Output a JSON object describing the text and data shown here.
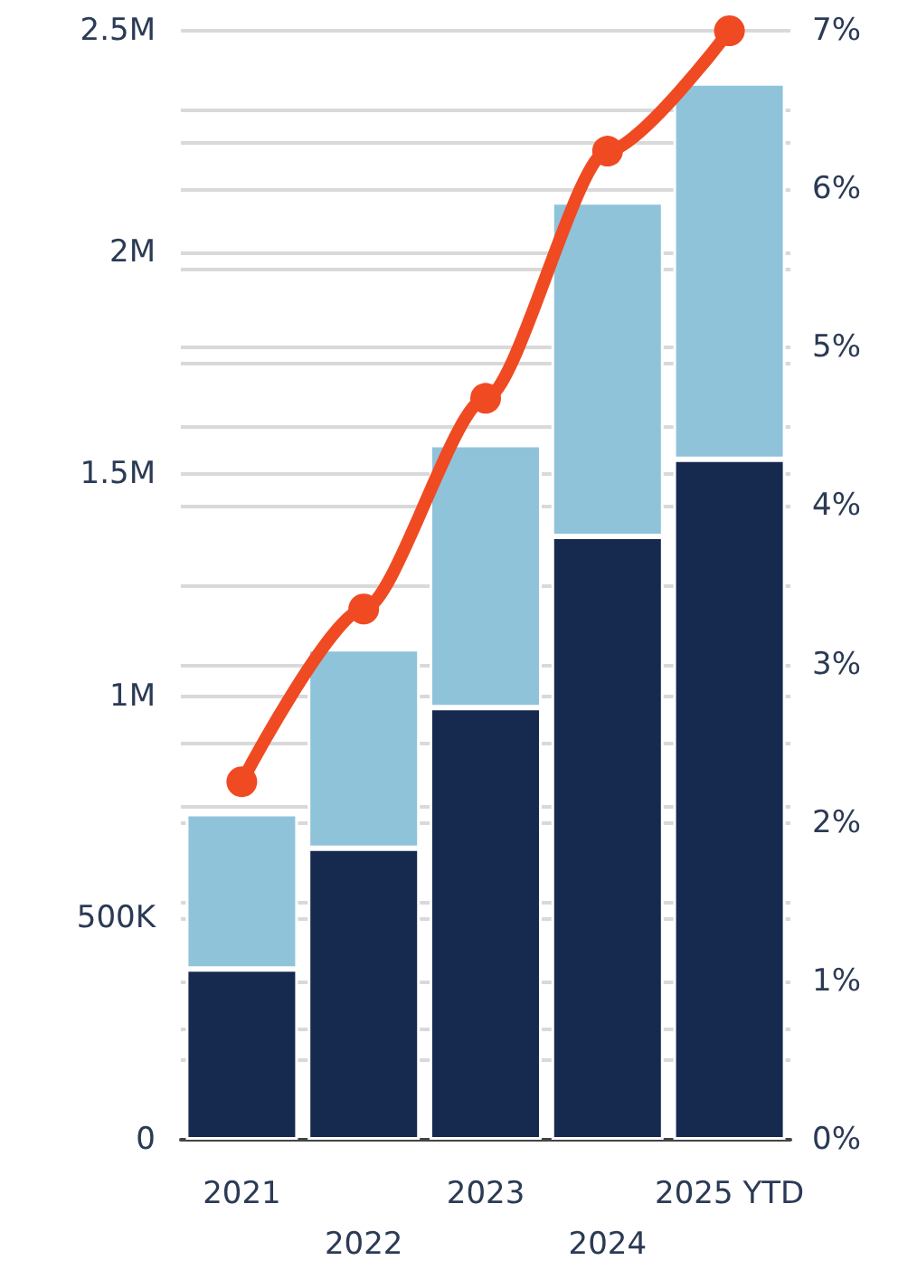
{
  "chart_data": {
    "type": "bar",
    "stacked": true,
    "grid": true,
    "categories": [
      "2021",
      "2022",
      "2023",
      "2024",
      "2025 YTD"
    ],
    "series": [
      {
        "color": "#16294f",
        "values": [
          385000,
          657000,
          974000,
          1360000,
          1534000
        ]
      },
      {
        "color": "#8fc3da",
        "values": [
          350000,
          450000,
          593000,
          754000,
          848000
        ]
      },
      {
        "type": "line",
        "axis": "y2",
        "color": "#f04a23",
        "marker": "circle",
        "values": [
          2.26,
          3.35,
          4.68,
          6.24,
          7.0
        ]
      }
    ],
    "ylim": [
      0,
      2500000
    ],
    "yticks": [
      0,
      {
        "value": 250000,
        "label": null
      },
      {
        "value": 500000,
        "label": "500K"
      },
      {
        "value": 750000,
        "label": null
      },
      {
        "value": 1000000,
        "label": "1M"
      },
      {
        "value": 1250000,
        "label": null
      },
      {
        "value": 1500000,
        "label": "1.5M"
      },
      {
        "value": 1750000,
        "label": null
      },
      {
        "value": 2000000,
        "label": "2M"
      },
      {
        "value": 2250000,
        "label": null
      },
      {
        "value": 2500000,
        "label": "2.5M"
      }
    ],
    "y2lim": [
      0,
      7
    ],
    "y2ticks": [
      {
        "value": 0,
        "label": "0%"
      },
      {
        "value": 0.5,
        "label": null
      },
      {
        "value": 1,
        "label": "1%"
      },
      {
        "value": 1.5,
        "label": null
      },
      {
        "value": 2,
        "label": "2%"
      },
      {
        "value": 2.5,
        "label": null
      },
      {
        "value": 3,
        "label": "3%"
      },
      {
        "value": 3.5,
        "label": null
      },
      {
        "value": 4,
        "label": "4%"
      },
      {
        "value": 4.5,
        "label": null
      },
      {
        "value": 5,
        "label": "5%"
      },
      {
        "value": 5.5,
        "label": null
      },
      {
        "value": 6,
        "label": "6%"
      },
      {
        "value": 6.5,
        "label": null
      },
      {
        "value": 7,
        "label": "7%"
      }
    ]
  }
}
